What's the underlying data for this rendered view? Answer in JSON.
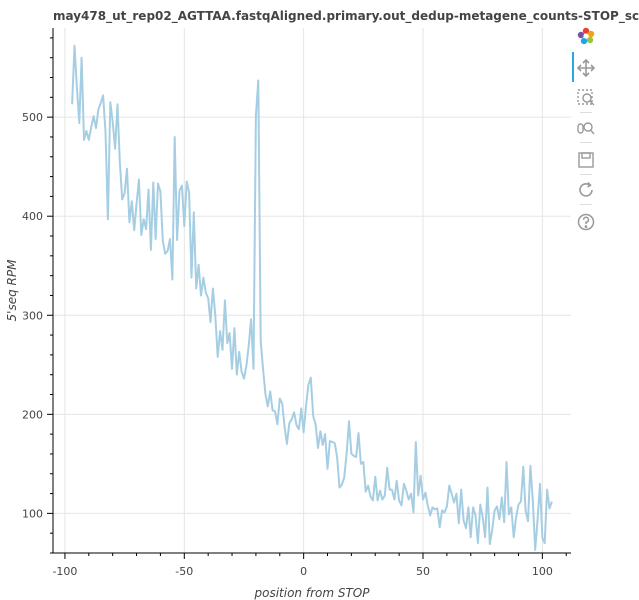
{
  "chart_data": {
    "type": "line",
    "title": "may478_ut_rep02_AGTTAA.fastqAligned.primary.out_dedup-metagene_counts-STOP_sc",
    "xlabel": "position from STOP",
    "ylabel": "5'seq RPM",
    "xlim": [
      -105,
      112
    ],
    "ylim": [
      60,
      590
    ],
    "xticks": [
      -100,
      -50,
      0,
      50,
      100
    ],
    "yticks": [
      100,
      200,
      300,
      400,
      500
    ],
    "grid": true,
    "line_color": "#a6cee3",
    "points": [
      [
        -97,
        513
      ],
      [
        -96,
        572
      ],
      [
        -95,
        530
      ],
      [
        -94,
        494
      ],
      [
        -93,
        560
      ],
      [
        -92,
        477
      ],
      [
        -91,
        486
      ],
      [
        -90,
        477
      ],
      [
        -89,
        490
      ],
      [
        -88,
        501
      ],
      [
        -87,
        489
      ],
      [
        -86,
        508
      ],
      [
        -85,
        514
      ],
      [
        -84,
        522
      ],
      [
        -83,
        485
      ],
      [
        -82,
        397
      ],
      [
        -81,
        515
      ],
      [
        -80,
        495
      ],
      [
        -79,
        468
      ],
      [
        -78,
        513
      ],
      [
        -77,
        455
      ],
      [
        -76,
        417
      ],
      [
        -75,
        423
      ],
      [
        -74,
        448
      ],
      [
        -73,
        394
      ],
      [
        -72,
        415
      ],
      [
        -71,
        386
      ],
      [
        -70,
        412
      ],
      [
        -69,
        437
      ],
      [
        -68,
        381
      ],
      [
        -67,
        397
      ],
      [
        -66,
        387
      ],
      [
        -65,
        427
      ],
      [
        -64,
        366
      ],
      [
        -63,
        434
      ],
      [
        -62,
        377
      ],
      [
        -61,
        433
      ],
      [
        -60,
        425
      ],
      [
        -59,
        375
      ],
      [
        -58,
        362
      ],
      [
        -57,
        365
      ],
      [
        -56,
        377
      ],
      [
        -55,
        336
      ],
      [
        -54,
        480
      ],
      [
        -53,
        376
      ],
      [
        -52,
        426
      ],
      [
        -51,
        431
      ],
      [
        -50,
        390
      ],
      [
        -49,
        435
      ],
      [
        -48,
        424
      ],
      [
        -47,
        338
      ],
      [
        -46,
        404
      ],
      [
        -45,
        327
      ],
      [
        -44,
        351
      ],
      [
        -43,
        320
      ],
      [
        -42,
        338
      ],
      [
        -41,
        323
      ],
      [
        -40,
        317
      ],
      [
        -39,
        293
      ],
      [
        -38,
        327
      ],
      [
        -37,
        300
      ],
      [
        -36,
        258
      ],
      [
        -35,
        284
      ],
      [
        -34,
        265
      ],
      [
        -33,
        315
      ],
      [
        -32,
        272
      ],
      [
        -31,
        282
      ],
      [
        -30,
        246
      ],
      [
        -29,
        287
      ],
      [
        -28,
        240
      ],
      [
        -27,
        263
      ],
      [
        -26,
        243
      ],
      [
        -25,
        236
      ],
      [
        -24,
        249
      ],
      [
        -23,
        269
      ],
      [
        -22,
        296
      ],
      [
        -21,
        246
      ],
      [
        -20,
        502
      ],
      [
        -19,
        537
      ],
      [
        -18,
        274
      ],
      [
        -17,
        245
      ],
      [
        -16,
        220
      ],
      [
        -15,
        208
      ],
      [
        -14,
        223
      ],
      [
        -13,
        204
      ],
      [
        -12,
        203
      ],
      [
        -11,
        190
      ],
      [
        -10,
        216
      ],
      [
        -9,
        211
      ],
      [
        -8,
        188
      ],
      [
        -7,
        170
      ],
      [
        -6,
        191
      ],
      [
        -5,
        195
      ],
      [
        -4,
        202
      ],
      [
        -3,
        189
      ],
      [
        -2,
        185
      ],
      [
        -1,
        206
      ],
      [
        0,
        182
      ],
      [
        1,
        208
      ],
      [
        2,
        230
      ],
      [
        3,
        237
      ],
      [
        4,
        198
      ],
      [
        5,
        190
      ],
      [
        6,
        166
      ],
      [
        7,
        183
      ],
      [
        8,
        169
      ],
      [
        9,
        180
      ],
      [
        10,
        145
      ],
      [
        11,
        173
      ],
      [
        12,
        172
      ],
      [
        13,
        171
      ],
      [
        14,
        157
      ],
      [
        15,
        126
      ],
      [
        16,
        129
      ],
      [
        17,
        136
      ],
      [
        18,
        160
      ],
      [
        19,
        193
      ],
      [
        20,
        160
      ],
      [
        21,
        158
      ],
      [
        22,
        157
      ],
      [
        23,
        181
      ],
      [
        24,
        150
      ],
      [
        25,
        152
      ],
      [
        26,
        122
      ],
      [
        27,
        128
      ],
      [
        28,
        117
      ],
      [
        29,
        113
      ],
      [
        30,
        137
      ],
      [
        31,
        113
      ],
      [
        32,
        123
      ],
      [
        33,
        114
      ],
      [
        34,
        118
      ],
      [
        35,
        146
      ],
      [
        36,
        124
      ],
      [
        37,
        124
      ],
      [
        38,
        114
      ],
      [
        39,
        133
      ],
      [
        40,
        113
      ],
      [
        41,
        108
      ],
      [
        42,
        130
      ],
      [
        43,
        123
      ],
      [
        44,
        114
      ],
      [
        45,
        120
      ],
      [
        46,
        101
      ],
      [
        47,
        172
      ],
      [
        48,
        118
      ],
      [
        49,
        138
      ],
      [
        50,
        114
      ],
      [
        51,
        121
      ],
      [
        52,
        108
      ],
      [
        53,
        98
      ],
      [
        54,
        106
      ],
      [
        55,
        104
      ],
      [
        56,
        105
      ],
      [
        57,
        86
      ],
      [
        58,
        103
      ],
      [
        59,
        101
      ],
      [
        60,
        107
      ],
      [
        61,
        128
      ],
      [
        62,
        120
      ],
      [
        63,
        111
      ],
      [
        64,
        120
      ],
      [
        65,
        90
      ],
      [
        66,
        124
      ],
      [
        67,
        93
      ],
      [
        68,
        85
      ],
      [
        69,
        106
      ],
      [
        70,
        76
      ],
      [
        71,
        106
      ],
      [
        72,
        98
      ],
      [
        73,
        70
      ],
      [
        74,
        109
      ],
      [
        75,
        96
      ],
      [
        76,
        76
      ],
      [
        77,
        126
      ],
      [
        78,
        69
      ],
      [
        79,
        83
      ],
      [
        80,
        103
      ],
      [
        81,
        107
      ],
      [
        82,
        94
      ],
      [
        83,
        116
      ],
      [
        84,
        91
      ],
      [
        85,
        152
      ],
      [
        86,
        99
      ],
      [
        87,
        106
      ],
      [
        88,
        76
      ],
      [
        89,
        96
      ],
      [
        90,
        109
      ],
      [
        91,
        112
      ],
      [
        92,
        147
      ],
      [
        93,
        103
      ],
      [
        94,
        92
      ],
      [
        95,
        148
      ],
      [
        96,
        113
      ],
      [
        97,
        63
      ],
      [
        98,
        94
      ],
      [
        99,
        130
      ],
      [
        100,
        75
      ],
      [
        101,
        70
      ],
      [
        102,
        124
      ],
      [
        103,
        105
      ],
      [
        104,
        112
      ]
    ]
  },
  "toolbar": {
    "tools": [
      {
        "name": "bokeh-logo-icon"
      },
      {
        "name": "pan-icon"
      },
      {
        "name": "box-zoom-icon"
      },
      {
        "name": "wheel-zoom-icon"
      },
      {
        "name": "save-icon"
      },
      {
        "name": "reset-icon"
      },
      {
        "name": "help-icon"
      }
    ]
  }
}
